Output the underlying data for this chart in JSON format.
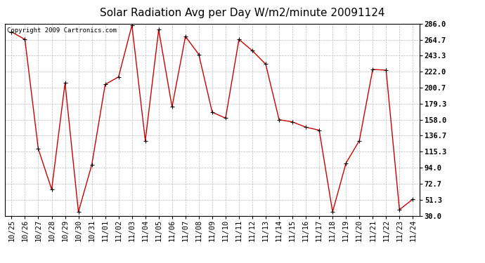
{
  "title": "Solar Radiation Avg per Day W/m2/minute 20091124",
  "copyright": "Copyright 2009 Cartronics.com",
  "labels": [
    "10/25",
    "10/26",
    "10/27",
    "10/28",
    "10/29",
    "10/30",
    "10/31",
    "11/01",
    "11/02",
    "11/03",
    "11/04",
    "11/05",
    "11/06",
    "11/07",
    "11/08",
    "11/09",
    "11/10",
    "11/11",
    "11/12",
    "11/13",
    "11/14",
    "11/15",
    "11/16",
    "11/17",
    "11/18",
    "11/19",
    "11/20",
    "11/21",
    "11/22",
    "11/23",
    "11/24"
  ],
  "values": [
    275.0,
    265.0,
    119.0,
    65.0,
    207.0,
    35.0,
    98.0,
    205.0,
    215.0,
    284.0,
    130.0,
    278.0,
    175.0,
    269.0,
    245.0,
    168.0,
    160.0,
    265.0,
    250.0,
    232.0,
    158.0,
    155.0,
    148.0,
    144.0,
    35.0,
    100.0,
    130.0,
    225.0,
    224.0,
    38.0,
    52.0
  ],
  "ymin": 30.0,
  "ymax": 286.0,
  "yticks": [
    30.0,
    51.3,
    72.7,
    94.0,
    115.3,
    136.7,
    158.0,
    179.3,
    200.7,
    222.0,
    243.3,
    264.7,
    286.0
  ],
  "line_color": "#cc0000",
  "marker_color": "#000000",
  "bg_color": "#ffffff",
  "plot_bg_color": "#ffffff",
  "grid_color": "#bbbbbb",
  "title_fontsize": 11,
  "tick_fontsize": 7.5,
  "copyright_fontsize": 6.5
}
